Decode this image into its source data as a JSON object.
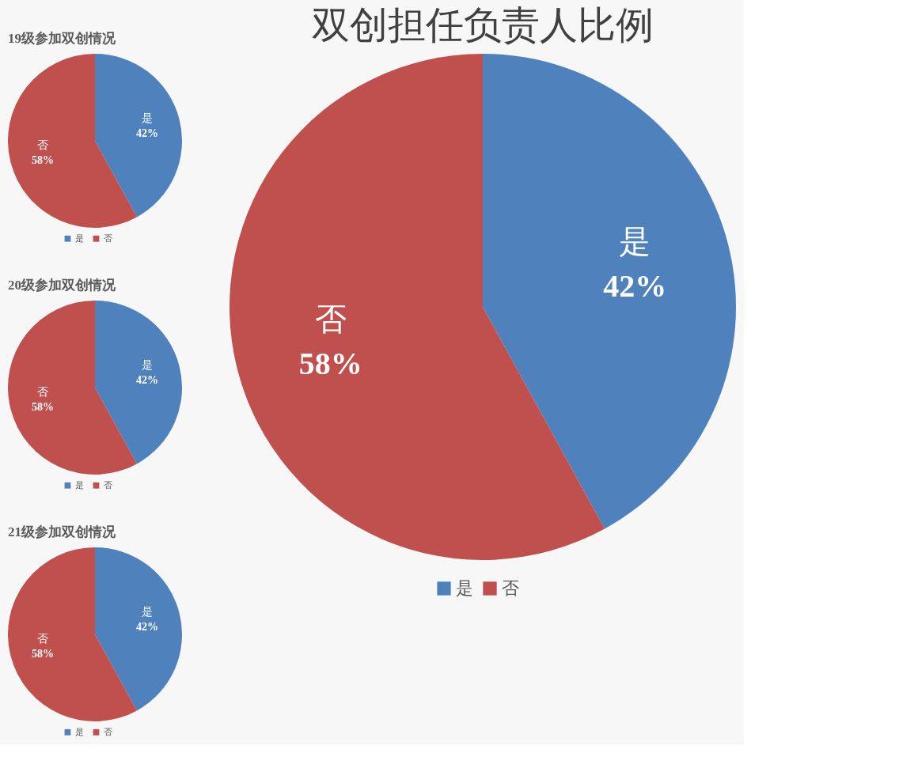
{
  "chart_data": [
    {
      "type": "pie",
      "title": "19级参加双创情况",
      "categories": [
        "是",
        "否"
      ],
      "values": [
        42,
        58
      ],
      "colors": [
        "#4f81bd",
        "#c0504d"
      ],
      "value_labels": [
        "42%",
        "58%"
      ],
      "legend": "bottom"
    },
    {
      "type": "pie",
      "title": "20级参加双创情况",
      "categories": [
        "是",
        "否"
      ],
      "values": [
        42,
        58
      ],
      "colors": [
        "#4f81bd",
        "#c0504d"
      ],
      "value_labels": [
        "42%",
        "58%"
      ],
      "legend": "bottom"
    },
    {
      "type": "pie",
      "title": "21级参加双创情况",
      "categories": [
        "是",
        "否"
      ],
      "values": [
        42,
        58
      ],
      "colors": [
        "#4f81bd",
        "#c0504d"
      ],
      "value_labels": [
        "42%",
        "58%"
      ],
      "legend": "bottom"
    },
    {
      "type": "pie",
      "title": "双创担任负责人比例",
      "categories": [
        "是",
        "否"
      ],
      "values": [
        42,
        58
      ],
      "colors": [
        "#4f81bd",
        "#c0504d"
      ],
      "value_labels": [
        "42%",
        "58%"
      ],
      "legend": "bottom"
    }
  ]
}
